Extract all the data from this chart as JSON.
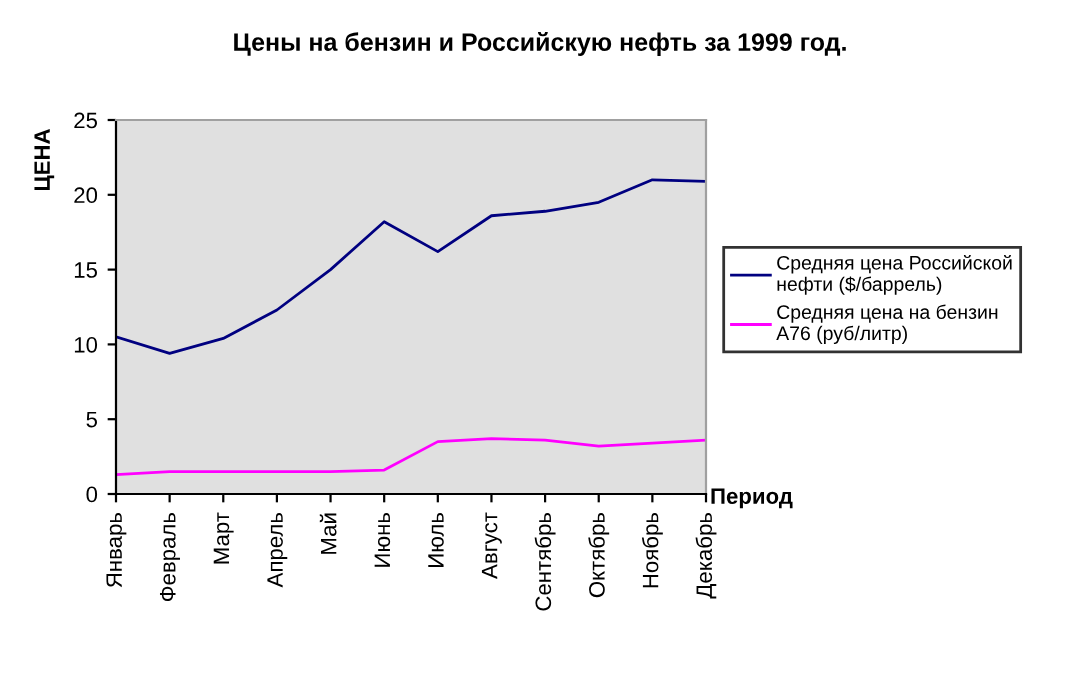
{
  "chart_data": {
    "type": "line",
    "title": "Цены на бензин и Российскую нефть за 1999 год.",
    "xlabel": "Период",
    "ylabel": "ЦЕНА",
    "categories": [
      "Январь",
      "Февраль",
      "Март",
      "Апрель",
      "Май",
      "Июнь",
      "Июль",
      "Август",
      "Сентябрь",
      "Октябрь",
      "Ноябрь",
      "Декабрь"
    ],
    "series": [
      {
        "name": "Средняя цена Российской нефти ($/баррель)",
        "color": "#000080",
        "values": [
          10.5,
          9.4,
          10.4,
          12.3,
          15.0,
          18.2,
          16.2,
          18.6,
          18.9,
          19.5,
          21.0,
          20.9
        ]
      },
      {
        "name": "Средняя цена на бензин А76 (руб/литр)",
        "color": "#ff00ff",
        "values": [
          1.3,
          1.5,
          1.5,
          1.5,
          1.5,
          1.6,
          3.5,
          3.7,
          3.6,
          3.2,
          3.4,
          3.6
        ]
      }
    ],
    "ylim": [
      0,
      25
    ],
    "yticks": [
      0,
      5,
      10,
      15,
      20,
      25
    ],
    "grid": false,
    "legend": "right",
    "marker": "none",
    "line_style": "solid"
  }
}
